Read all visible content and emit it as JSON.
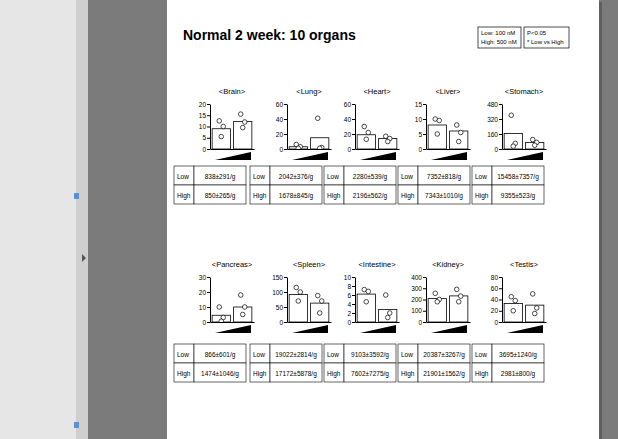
{
  "page": {
    "title": "Normal 2 week: 10 organs",
    "notes": [
      [
        "Low: 100 nM",
        "High: 500 nM"
      ],
      [
        "P<0.05",
        "* Low vs High"
      ]
    ]
  },
  "chart_data": [
    {
      "type": "bar",
      "title": "<Brain>",
      "categories": [
        null,
        null
      ],
      "values": [
        9,
        12.2
      ],
      "color": "#ffffff",
      "points": [
        [
          12.5,
          10,
          5.5
        ],
        [
          15.5,
          12,
          9.5
        ]
      ],
      "ylim": [
        0,
        20
      ],
      "yticks": [
        0,
        5,
        10,
        15,
        20
      ],
      "table": [
        [
          "Low",
          "838±291/g"
        ],
        [
          "High",
          "850±265/g"
        ]
      ]
    },
    {
      "type": "bar",
      "title": "<Lung>",
      "categories": [
        null,
        null
      ],
      "values": [
        3,
        15
      ],
      "color": "#ffffff",
      "points": [
        [
          6,
          3,
          1
        ],
        [
          41,
          2,
          1
        ]
      ],
      "ylim": [
        0,
        60
      ],
      "yticks": [
        0,
        20,
        40,
        60
      ],
      "table": [
        [
          "Low",
          "2042±376/g"
        ],
        [
          "High",
          "1678±845/g"
        ]
      ]
    },
    {
      "type": "bar",
      "title": "<Heart>",
      "categories": [
        null,
        null
      ],
      "values": [
        19,
        14
      ],
      "color": "#ffffff",
      "points": [
        [
          30,
          22,
          13
        ],
        [
          17,
          14,
          10
        ]
      ],
      "ylim": [
        0,
        60
      ],
      "yticks": [
        0,
        20,
        40,
        60
      ],
      "table": [
        [
          "Low",
          "2280±539/g"
        ],
        [
          "High",
          "2196±562/g"
        ]
      ]
    },
    {
      "type": "bar",
      "title": "<Liver>",
      "categories": [
        null,
        null
      ],
      "values": [
        8,
        6
      ],
      "color": "#ffffff",
      "points": [
        [
          10,
          9.5,
          5
        ],
        [
          8,
          5.5,
          2.5
        ]
      ],
      "ylim": [
        0,
        15
      ],
      "yticks": [
        0,
        5,
        10,
        15
      ],
      "table": [
        [
          "Low",
          "7352±818/g"
        ],
        [
          "High",
          "7343±1010/g"
        ]
      ]
    },
    {
      "type": "bar",
      "title": "<Stomach>",
      "categories": [
        null,
        null
      ],
      "values": [
        165,
        70
      ],
      "color": "#ffffff",
      "points": [
        [
          360,
          60,
          30
        ],
        [
          100,
          70,
          40
        ]
      ],
      "ylim": [
        0,
        480
      ],
      "yticks": [
        0,
        160,
        320,
        480
      ],
      "table": [
        [
          "Low",
          "15458±7357/g"
        ],
        [
          "High",
          "9355±523/g"
        ]
      ]
    },
    {
      "type": "bar",
      "title": "<Pancreas>",
      "categories": [
        null,
        null
      ],
      "values": [
        4.5,
        10
      ],
      "color": "#ffffff",
      "points": [
        [
          10,
          3,
          0.5
        ],
        [
          18,
          10,
          5
        ]
      ],
      "ylim": [
        0,
        30
      ],
      "yticks": [
        0,
        10,
        20,
        30
      ],
      "table": [
        [
          "Low",
          "866±601/g"
        ],
        [
          "High",
          "1474±1046/g"
        ]
      ]
    },
    {
      "type": "bar",
      "title": "<Spleen>",
      "categories": [
        null,
        null
      ],
      "values": [
        92,
        63
      ],
      "color": "#ffffff",
      "points": [
        [
          115,
          100,
          70
        ],
        [
          88,
          70,
          30
        ]
      ],
      "ylim": [
        0,
        150
      ],
      "yticks": [
        0,
        50,
        100,
        150
      ],
      "table": [
        [
          "Low",
          "19022±2814/g"
        ],
        [
          "High",
          "17172±5878/g"
        ]
      ]
    },
    {
      "type": "bar",
      "title": "<Intestine>",
      "categories": [
        null,
        null
      ],
      "values": [
        6.2,
        2.8
      ],
      "color": "#ffffff",
      "points": [
        [
          7.2,
          6.8,
          4.5
        ],
        [
          6,
          2,
          1
        ]
      ],
      "ylim": [
        0,
        10
      ],
      "yticks": [
        0,
        2,
        4,
        6,
        8,
        10
      ],
      "table": [
        [
          "Low",
          "9103±3592/g"
        ],
        [
          "High",
          "7602±7275/g"
        ]
      ]
    },
    {
      "type": "bar",
      "title": "<Kidney>",
      "categories": [
        null,
        null
      ],
      "values": [
        208,
        232
      ],
      "color": "#ffffff",
      "points": [
        [
          255,
          200,
          180
        ],
        [
          290,
          230,
          180
        ]
      ],
      "ylim": [
        0,
        400
      ],
      "yticks": [
        0,
        100,
        200,
        300,
        400
      ],
      "table": [
        [
          "Low",
          "20387±3267/g"
        ],
        [
          "High",
          "21901±1562/g"
        ]
      ]
    },
    {
      "type": "bar",
      "title": "<Testis>",
      "categories": [
        null,
        null
      ],
      "values": [
        33,
        30
      ],
      "color": "#ffffff",
      "points": [
        [
          45,
          38,
          20
        ],
        [
          50,
          25,
          15
        ]
      ],
      "ylim": [
        0,
        80
      ],
      "yticks": [
        0,
        20,
        40,
        60,
        80
      ],
      "table": [
        [
          "Low",
          "3695±1240/g"
        ],
        [
          "High",
          "2981±800/g"
        ]
      ]
    }
  ]
}
